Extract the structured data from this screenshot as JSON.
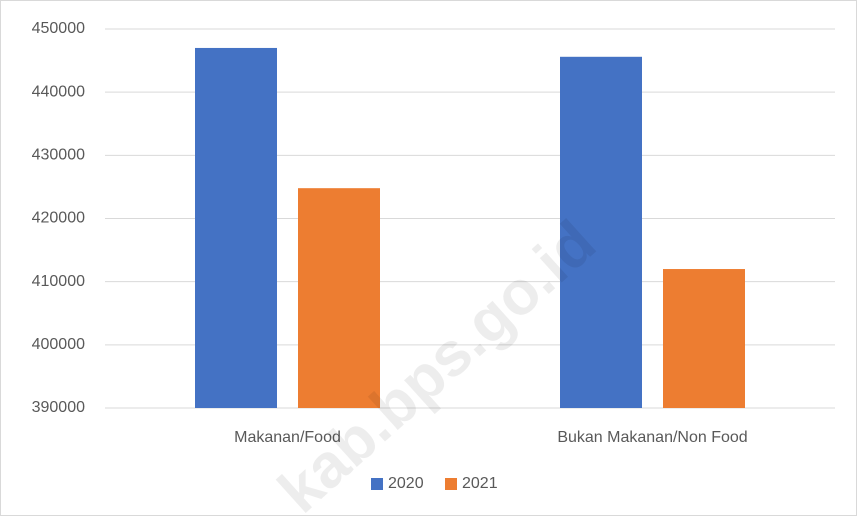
{
  "chart_data": {
    "type": "bar",
    "categories": [
      "Makanan/Food",
      "Bukan Makanan/Non Food"
    ],
    "series": [
      {
        "name": "2020",
        "color": "#4472c4",
        "values": [
          447000,
          445600
        ]
      },
      {
        "name": "2021",
        "color": "#ed7d31",
        "values": [
          424800,
          412000
        ]
      }
    ],
    "ylim": [
      390000,
      450000
    ],
    "yticks": [
      390000,
      400000,
      410000,
      420000,
      430000,
      440000,
      450000
    ],
    "grid": true,
    "legend": "bottom",
    "watermark": "kab.bps.go.id"
  }
}
